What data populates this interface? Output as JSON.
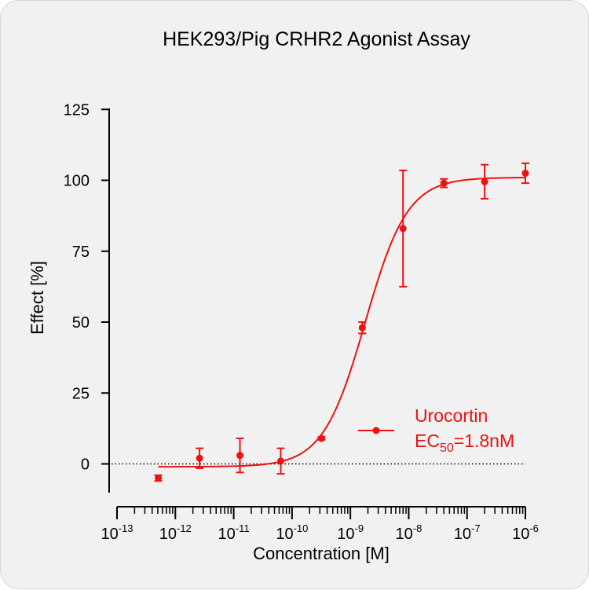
{
  "chart_data": {
    "type": "scatter",
    "title": "HEK293/Pig CRHR2 Agonist Assay",
    "xlabel": "Concentration [M]",
    "ylabel": "Effect  [%]",
    "x_scale": "log",
    "xlim": [
      1e-13,
      1e-06
    ],
    "ylim": [
      -10,
      125
    ],
    "y_ticks": [
      0,
      25,
      50,
      75,
      100,
      125
    ],
    "x_ticks": [
      {
        "base": "10",
        "exp": "-13"
      },
      {
        "base": "10",
        "exp": "-12"
      },
      {
        "base": "10",
        "exp": "-11"
      },
      {
        "base": "10",
        "exp": "-10"
      },
      {
        "base": "10",
        "exp": "-9"
      },
      {
        "base": "10",
        "exp": "-8"
      },
      {
        "base": "10",
        "exp": "-7"
      },
      {
        "base": "10",
        "exp": "-6"
      }
    ],
    "reference_line": {
      "y": 0,
      "style": "dotted"
    },
    "grid": false,
    "series": [
      {
        "name": "Urocortin",
        "color": "#ee1111",
        "x": [
          5.1e-13,
          2.6e-12,
          1.28e-11,
          6.4e-11,
          3.2e-10,
          1.6e-09,
          8e-09,
          4e-08,
          2e-07,
          1e-06
        ],
        "y": [
          -5,
          2,
          3,
          1,
          9,
          48,
          83,
          99,
          99.5,
          102.5
        ],
        "y_err": [
          1,
          3.5,
          6,
          4.5,
          0.5,
          2,
          20.5,
          1.5,
          6,
          3.5
        ],
        "fit": {
          "model": "4PL",
          "bottom": -1,
          "top": 101,
          "ec50": 1.8e-09,
          "hill": 1.2
        }
      }
    ],
    "legend": {
      "position": "bottom-right",
      "label": "Urocortin",
      "ec50_prefix": "EC",
      "ec50_subscript": "50",
      "ec50_value": "=1.8nM"
    }
  }
}
